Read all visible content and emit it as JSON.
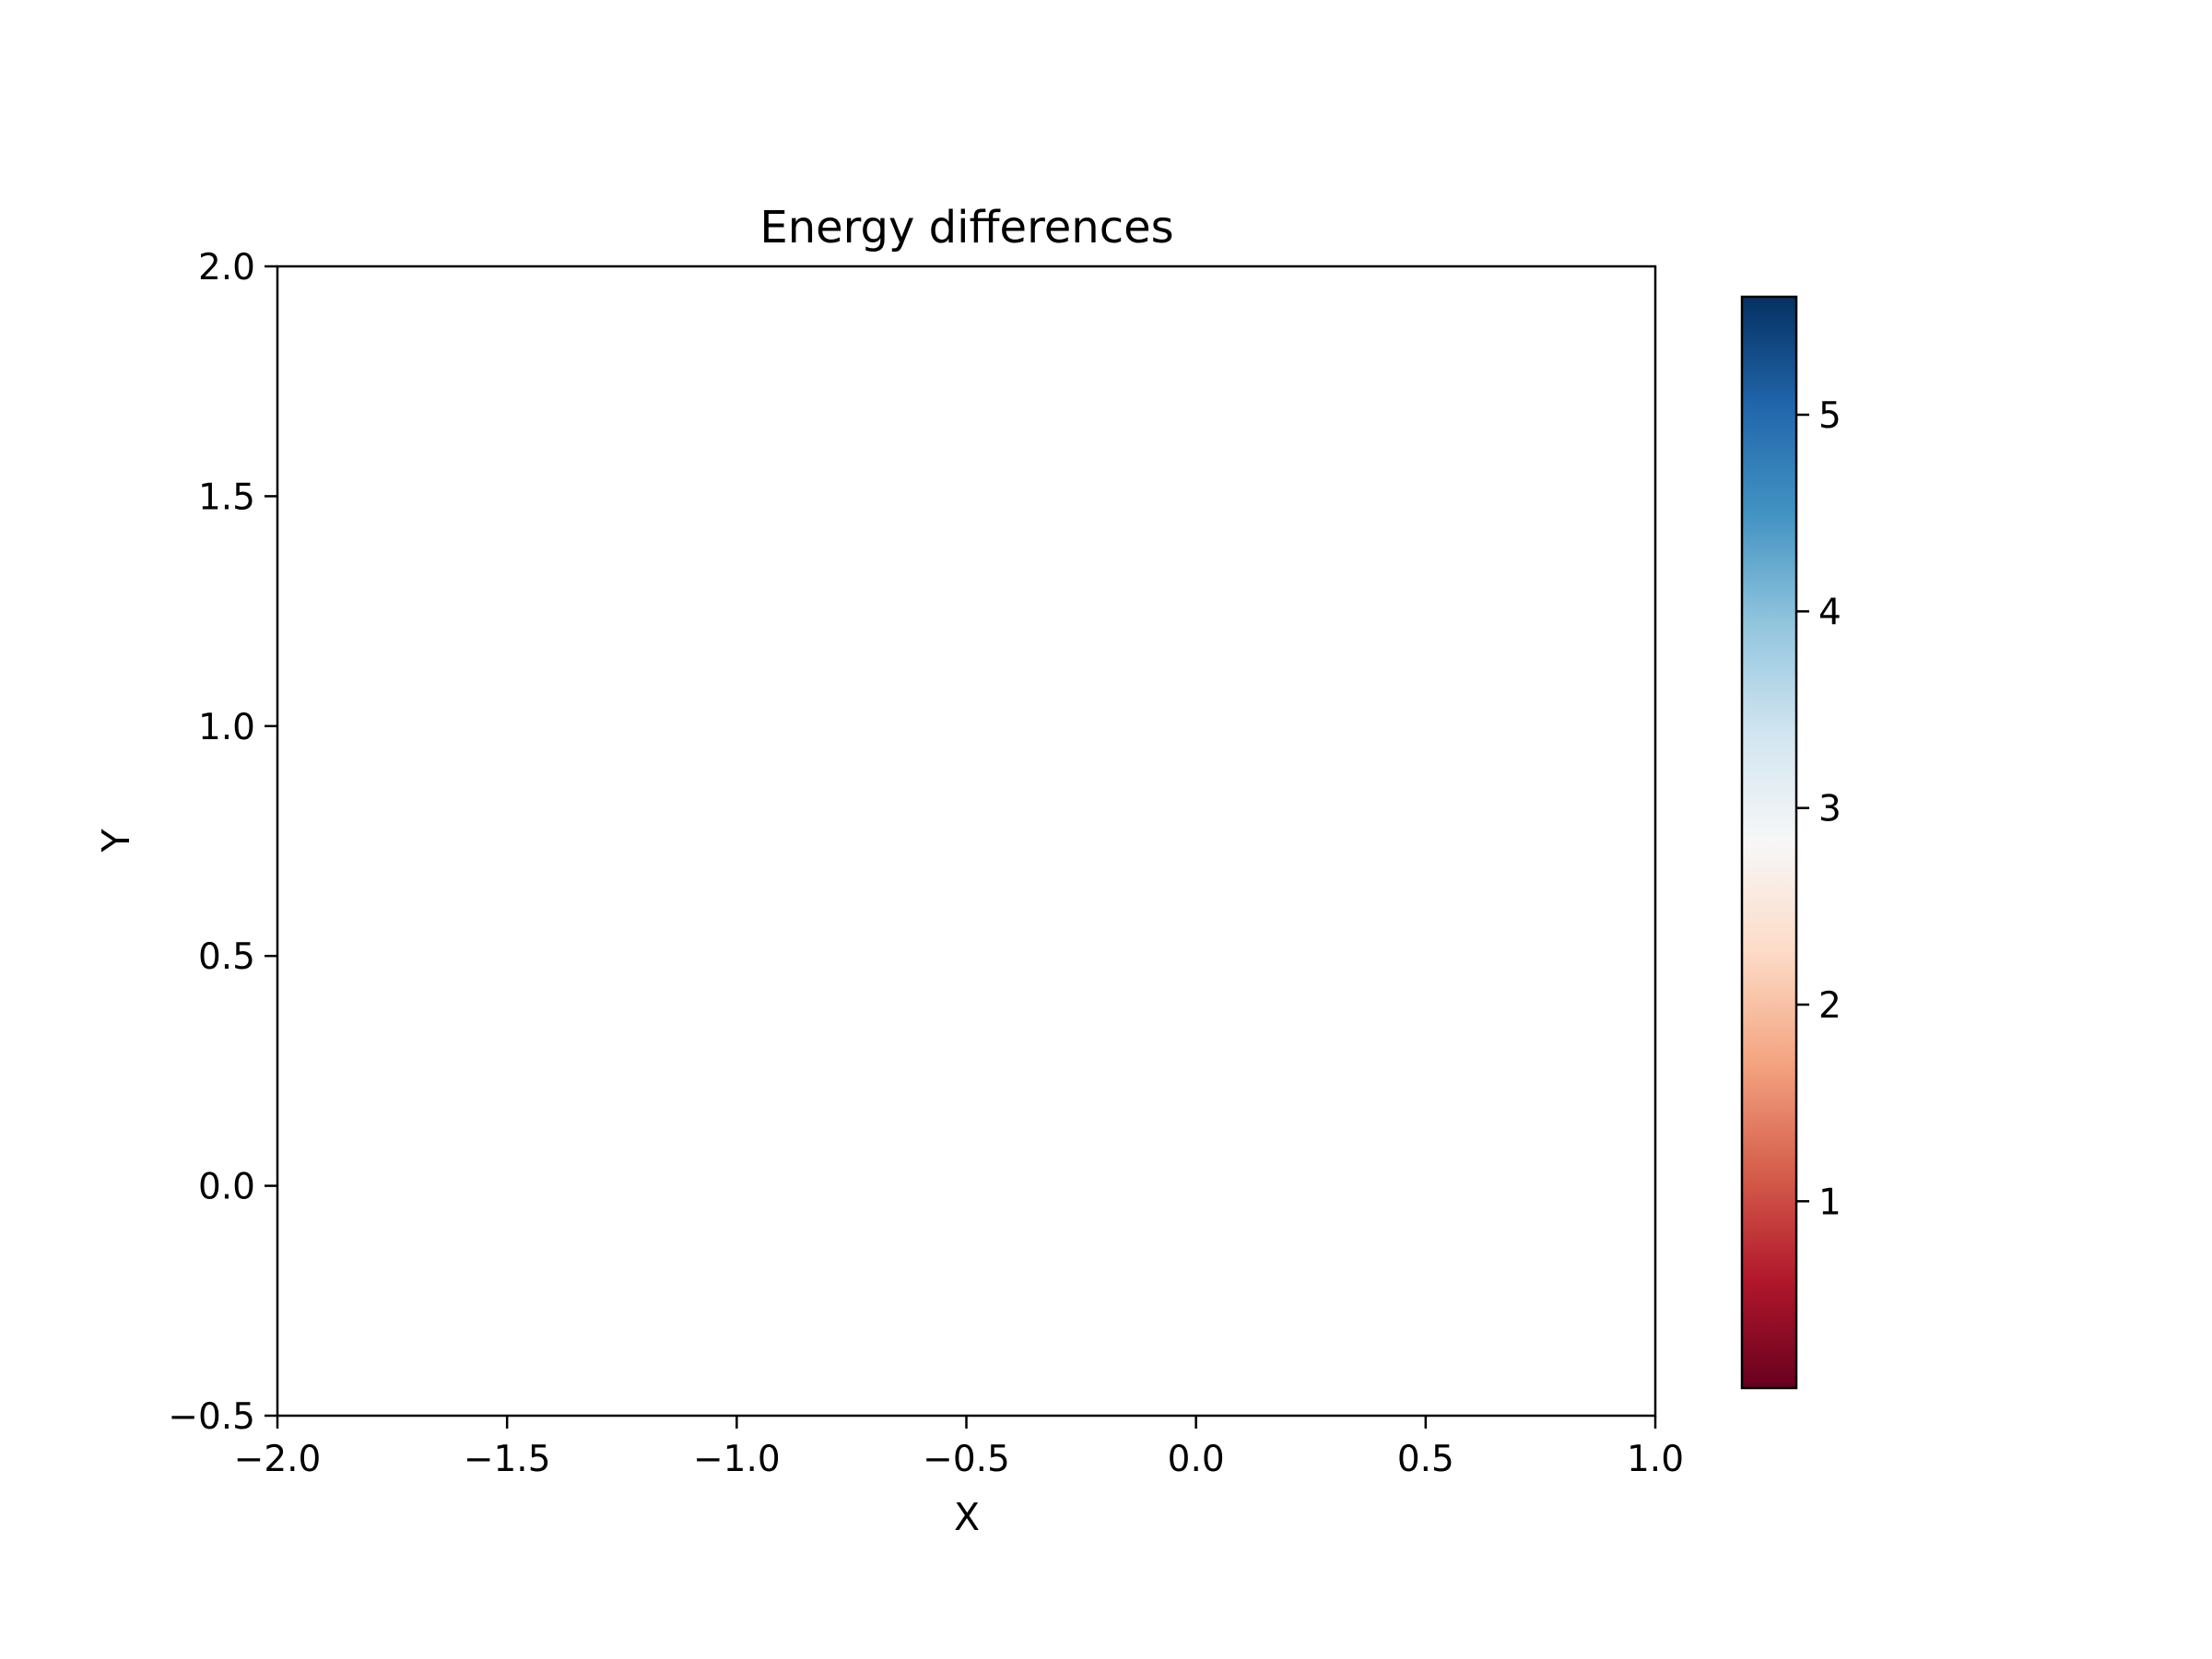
{
  "chart_data": {
    "type": "heatmap",
    "title": "Energy differences",
    "xlabel": "X",
    "ylabel": "Y",
    "xlim": [
      -2.0,
      1.0
    ],
    "ylim": [
      -0.5,
      2.0
    ],
    "x_ticks": [
      "−2.0",
      "−1.5",
      "−1.0",
      "−0.5",
      "0.0",
      "0.5",
      "1.0"
    ],
    "x_tick_values": [
      -2.0,
      -1.5,
      -1.0,
      -0.5,
      0.0,
      0.5,
      1.0
    ],
    "y_ticks": [
      "−0.5",
      "0.0",
      "0.5",
      "1.0",
      "1.5",
      "2.0"
    ],
    "y_tick_values": [
      -0.5,
      0.0,
      0.5,
      1.0,
      1.5,
      2.0
    ],
    "values": [],
    "colorbar": {
      "colormap": "RdBu",
      "range": [
        0.05,
        5.6
      ],
      "ticks": [
        "1",
        "2",
        "3",
        "4",
        "5"
      ],
      "tick_values": [
        1,
        2,
        3,
        4,
        5
      ],
      "colors": [
        "#67001f",
        "#b2182b",
        "#d6604d",
        "#f4a582",
        "#fddbc7",
        "#f7f7f7",
        "#d1e5f0",
        "#92c5de",
        "#4393c3",
        "#2166ac",
        "#053061"
      ]
    },
    "grid": false
  }
}
